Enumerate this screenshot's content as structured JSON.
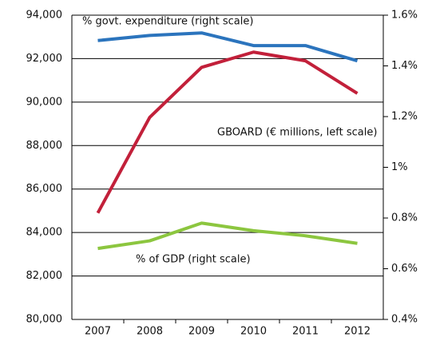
{
  "chart_data": {
    "type": "line",
    "categories": [
      "2007",
      "2008",
      "2009",
      "2010",
      "2011",
      "2012"
    ],
    "series": [
      {
        "name": "% govt. expenditure (right scale)",
        "color": "#2b74bd",
        "axis": "y2",
        "values": [
          1.5,
          1.52,
          1.53,
          1.48,
          1.48,
          1.42
        ]
      },
      {
        "name": "GBOARD (€ millions, left scale)",
        "color": "#c2203a",
        "values": [
          84900,
          89300,
          91600,
          92300,
          91900,
          90400
        ]
      },
      {
        "name": "% of GDP (right scale)",
        "color": "#8cc63f",
        "axis": "y2",
        "values": [
          0.68,
          0.71,
          0.78,
          0.75,
          0.73,
          0.7
        ]
      }
    ],
    "ylim": [
      80000,
      94000
    ],
    "yticks": [
      {
        "value": 80000,
        "label": "80,000"
      },
      {
        "value": 82000,
        "label": "82,000"
      },
      {
        "value": 84000,
        "label": "84,000"
      },
      {
        "value": 86000,
        "label": "86,000"
      },
      {
        "value": 88000,
        "label": "88,000"
      },
      {
        "value": 90000,
        "label": "90,000"
      },
      {
        "value": 92000,
        "label": "92,000"
      },
      {
        "value": 94000,
        "label": "94,000"
      }
    ],
    "y2lim": [
      0.4,
      1.6
    ],
    "y2ticks": [
      {
        "value": 0.4,
        "label": "0.4%"
      },
      {
        "value": 0.6,
        "label": "0.6%"
      },
      {
        "value": 0.8,
        "label": "0.8%"
      },
      {
        "value": 1,
        "label": "1%"
      },
      {
        "value": 1.2,
        "label": "1.2%"
      },
      {
        "value": 1.4,
        "label": "1.4%"
      },
      {
        "value": 1.6,
        "label": "1.6%"
      }
    ],
    "grid": true
  }
}
